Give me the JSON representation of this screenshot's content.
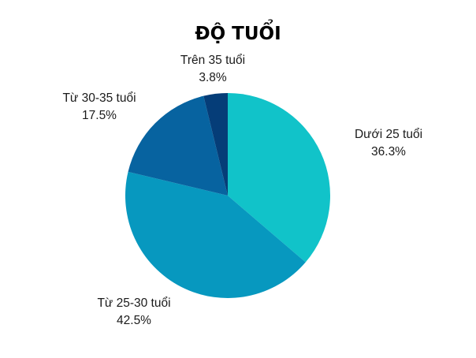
{
  "chart_data": {
    "type": "pie",
    "title": "ĐỘ TUỔI",
    "slices": [
      {
        "label": "Dưới 25 tuổi",
        "value": 36.3,
        "value_text": "36.3%",
        "color": "#11c3c9"
      },
      {
        "label": "Từ 25-30 tuổi",
        "value": 42.5,
        "value_text": "42.5%",
        "color": "#0798bf"
      },
      {
        "label": "Từ 30-35 tuổi",
        "value": 17.5,
        "value_text": "17.5%",
        "color": "#0763a0"
      },
      {
        "label": "Trên 35 tuổi",
        "value": 3.8,
        "value_text": "3.8%",
        "color": "#053d78"
      }
    ]
  }
}
